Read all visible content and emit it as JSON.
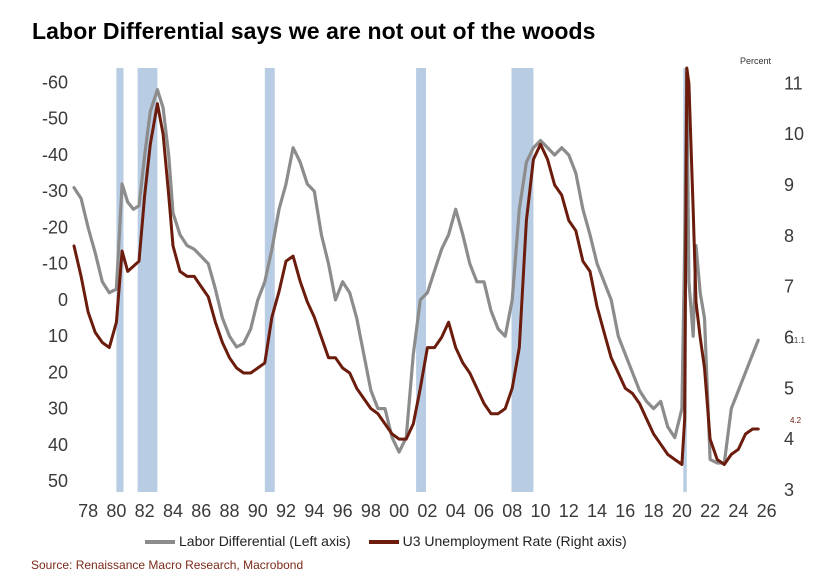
{
  "title": "Labor Differential says we are not out of the woods",
  "source": "Source: Renaissance Macro Research, Macrobond",
  "right_unit": "Percent",
  "colors": {
    "labor": "#8c8c8c",
    "u3": "#6b1c0c",
    "recession": "#b8cde3"
  },
  "legend": [
    {
      "label": "Labor Differential (Left axis)",
      "color": "#8c8c8c"
    },
    {
      "label": "U3 Unemployment Rate (Right axis)",
      "color": "#6b1c0c"
    }
  ],
  "chart_data": {
    "type": "line",
    "title": "Labor Differential says we are not out of the woods",
    "x_ticks": [
      "78",
      "80",
      "82",
      "84",
      "86",
      "88",
      "90",
      "92",
      "94",
      "96",
      "98",
      "00",
      "02",
      "04",
      "06",
      "08",
      "10",
      "12",
      "14",
      "16",
      "18",
      "20",
      "22",
      "24",
      "26"
    ],
    "left_axis": {
      "range": [
        -64,
        53
      ],
      "inverted": true,
      "ticks": [
        "-60",
        "-50",
        "-40",
        "-30",
        "-20",
        "-10",
        "0",
        "10",
        "20",
        "30",
        "40",
        "50"
      ]
    },
    "right_axis": {
      "unit": "Percent",
      "range": [
        2.96,
        11.3
      ],
      "ticks": [
        "11",
        "10",
        "9",
        "8",
        "7",
        "6",
        "5",
        "4",
        "3"
      ]
    },
    "recessions": [
      [
        1980.0,
        1980.5
      ],
      [
        1981.5,
        1982.9
      ],
      [
        1990.5,
        1991.2
      ],
      [
        2001.2,
        2001.9
      ],
      [
        2007.95,
        2009.5
      ],
      [
        2020.1,
        2020.35
      ]
    ],
    "end_labels": {
      "labor": "11.1",
      "u3": "4.2"
    },
    "series": [
      {
        "name": "Labor Differential (Left axis)",
        "axis": "left",
        "x": [
          1977.0,
          1977.5,
          1978.0,
          1978.5,
          1979.0,
          1979.5,
          1980.0,
          1980.4,
          1980.8,
          1981.2,
          1981.6,
          1982.0,
          1982.4,
          1982.9,
          1983.3,
          1983.7,
          1984.0,
          1984.5,
          1985.0,
          1985.5,
          1986.0,
          1986.5,
          1987.0,
          1987.5,
          1988.0,
          1988.5,
          1989.0,
          1989.5,
          1990.0,
          1990.5,
          1991.0,
          1991.5,
          1992.0,
          1992.5,
          1993.0,
          1993.5,
          1994.0,
          1994.5,
          1995.0,
          1995.5,
          1996.0,
          1996.5,
          1997.0,
          1997.5,
          1998.0,
          1998.5,
          1999.0,
          1999.5,
          2000.0,
          2000.5,
          2001.0,
          2001.5,
          2002.0,
          2002.5,
          2003.0,
          2003.5,
          2004.0,
          2004.5,
          2005.0,
          2005.5,
          2006.0,
          2006.5,
          2007.0,
          2007.5,
          2008.0,
          2008.5,
          2009.0,
          2009.5,
          2010.0,
          2010.5,
          2011.0,
          2011.5,
          2012.0,
          2012.5,
          2013.0,
          2013.5,
          2014.0,
          2014.5,
          2015.0,
          2015.5,
          2016.0,
          2016.5,
          2017.0,
          2017.5,
          2018.0,
          2018.5,
          2019.0,
          2019.5,
          2020.0,
          2020.2,
          2020.35,
          2020.5,
          2020.8,
          2021.0,
          2021.3,
          2021.6,
          2022.0,
          2022.5,
          2023.0,
          2023.5,
          2024.0,
          2024.5,
          2025.0,
          2025.4
        ],
        "values": [
          -31,
          -28,
          -20,
          -13,
          -5,
          -2,
          -3,
          -32,
          -27,
          -25,
          -26,
          -40,
          -52,
          -58,
          -53,
          -40,
          -24,
          -18,
          -15,
          -14,
          -12,
          -10,
          -3,
          5,
          10,
          13,
          12,
          8,
          0,
          -5,
          -14,
          -25,
          -32,
          -42,
          -38,
          -32,
          -30,
          -18,
          -10,
          0,
          -5,
          -2,
          5,
          15,
          25,
          30,
          30,
          38,
          42,
          38,
          15,
          0,
          -2,
          -8,
          -14,
          -18,
          -25,
          -18,
          -10,
          -5,
          -5,
          3,
          8,
          10,
          0,
          -25,
          -38,
          -42,
          -44,
          -42,
          -40,
          -42,
          -40,
          -35,
          -25,
          -18,
          -10,
          -5,
          0,
          10,
          15,
          20,
          25,
          28,
          30,
          28,
          35,
          38,
          30,
          -15,
          -63,
          -5,
          10,
          -15,
          -2,
          5,
          44,
          45,
          45,
          30,
          25,
          20,
          15,
          11.1
        ]
      },
      {
        "name": "U3 Unemployment Rate (Right axis)",
        "axis": "right",
        "x": [
          1977.0,
          1977.5,
          1978.0,
          1978.5,
          1979.0,
          1979.5,
          1980.0,
          1980.4,
          1980.8,
          1981.2,
          1981.6,
          1982.0,
          1982.4,
          1982.9,
          1983.3,
          1983.7,
          1984.0,
          1984.5,
          1985.0,
          1985.5,
          1986.0,
          1986.5,
          1987.0,
          1987.5,
          1988.0,
          1988.5,
          1989.0,
          1989.5,
          1990.0,
          1990.5,
          1991.0,
          1991.5,
          1992.0,
          1992.5,
          1993.0,
          1993.5,
          1994.0,
          1994.5,
          1995.0,
          1995.5,
          1996.0,
          1996.5,
          1997.0,
          1997.5,
          1998.0,
          1998.5,
          1999.0,
          1999.5,
          2000.0,
          2000.5,
          2001.0,
          2001.5,
          2002.0,
          2002.5,
          2003.0,
          2003.5,
          2004.0,
          2004.5,
          2005.0,
          2005.5,
          2006.0,
          2006.5,
          2007.0,
          2007.5,
          2008.0,
          2008.5,
          2009.0,
          2009.5,
          2010.0,
          2010.5,
          2011.0,
          2011.5,
          2012.0,
          2012.5,
          2013.0,
          2013.5,
          2014.0,
          2014.5,
          2015.0,
          2015.5,
          2016.0,
          2016.5,
          2017.0,
          2017.5,
          2018.0,
          2018.5,
          2019.0,
          2019.5,
          2020.0,
          2020.2,
          2020.35,
          2020.5,
          2020.8,
          2021.0,
          2021.3,
          2021.6,
          2022.0,
          2022.5,
          2023.0,
          2023.5,
          2024.0,
          2024.5,
          2025.0,
          2025.4
        ],
        "values": [
          7.8,
          7.2,
          6.5,
          6.1,
          5.9,
          5.8,
          6.3,
          7.7,
          7.3,
          7.4,
          7.5,
          8.8,
          9.8,
          10.6,
          10.0,
          8.8,
          7.8,
          7.3,
          7.2,
          7.2,
          7.0,
          6.8,
          6.3,
          5.9,
          5.6,
          5.4,
          5.3,
          5.3,
          5.4,
          5.5,
          6.4,
          6.9,
          7.5,
          7.6,
          7.1,
          6.7,
          6.4,
          6.0,
          5.6,
          5.6,
          5.4,
          5.3,
          5.0,
          4.8,
          4.6,
          4.5,
          4.3,
          4.1,
          4.0,
          4.0,
          4.3,
          5.0,
          5.8,
          5.8,
          6.0,
          6.3,
          5.8,
          5.5,
          5.3,
          5.0,
          4.7,
          4.5,
          4.5,
          4.6,
          5.0,
          5.8,
          8.3,
          9.5,
          9.8,
          9.5,
          9.0,
          8.8,
          8.3,
          8.1,
          7.5,
          7.3,
          6.6,
          6.1,
          5.6,
          5.3,
          5.0,
          4.9,
          4.7,
          4.4,
          4.1,
          3.9,
          3.7,
          3.6,
          3.5,
          4.4,
          11.3,
          11.0,
          8.5,
          6.7,
          6.0,
          5.4,
          4.0,
          3.6,
          3.5,
          3.7,
          3.8,
          4.1,
          4.2,
          4.2
        ]
      }
    ]
  }
}
